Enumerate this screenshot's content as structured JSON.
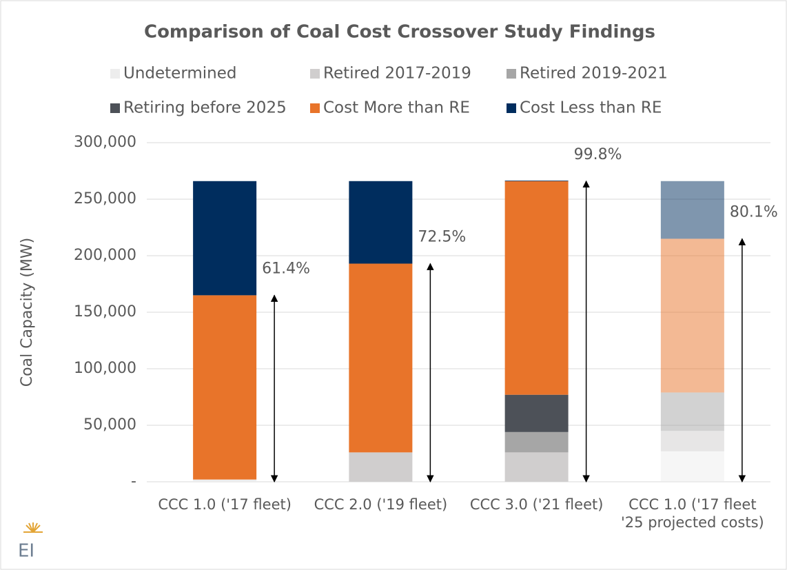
{
  "chart_data": {
    "type": "stacked_bar",
    "title": "Comparison of Coal Cost Crossover Study Findings",
    "y_label": "Coal Capacity (MW)",
    "categories": [
      "CCC 1.0 ('17 fleet)",
      "CCC 2.0 ('19 fleet)",
      "CCC 3.0 ('21 fleet)",
      "CCC 1.0 ('17 fleet '25 projected costs)"
    ],
    "series": [
      {
        "name": "Undetermined",
        "color": "#ededed",
        "values": [
          2000,
          0,
          0,
          27000
        ]
      },
      {
        "name": "Retired 2017-2019",
        "color": "#d0cece",
        "values": [
          0,
          26000,
          26000,
          18000
        ]
      },
      {
        "name": "Retired 2019-2021",
        "color": "#a6a6a6",
        "values": [
          0,
          0,
          18000,
          34000
        ]
      },
      {
        "name": "Retiring before 2025",
        "color": "#4d5158",
        "values": [
          0,
          0,
          33000,
          0
        ]
      },
      {
        "name": "Cost More than RE",
        "color": "#e8742a",
        "values": [
          163000,
          167000,
          189000,
          136000
        ]
      },
      {
        "name": "Cost Less than RE",
        "color": "#002d5e",
        "values": [
          101000,
          73000,
          500,
          51000
        ]
      }
    ],
    "bar_opacity": [
      1,
      1,
      1,
      0.5
    ],
    "annotations": [
      "61.4%",
      "72.5%",
      "99.8%",
      "80.1%"
    ],
    "ylim": [
      0,
      300000
    ],
    "yticks": [
      {
        "value": 0,
        "label": "-"
      },
      {
        "value": 50000,
        "label": "50,000"
      },
      {
        "value": 100000,
        "label": "100,000"
      },
      {
        "value": 150000,
        "label": "150,000"
      },
      {
        "value": 200000,
        "label": "200,000"
      },
      {
        "value": 250000,
        "label": "250,000"
      },
      {
        "value": 300000,
        "label": "300,000"
      }
    ],
    "grid": true
  },
  "logo": "EI"
}
